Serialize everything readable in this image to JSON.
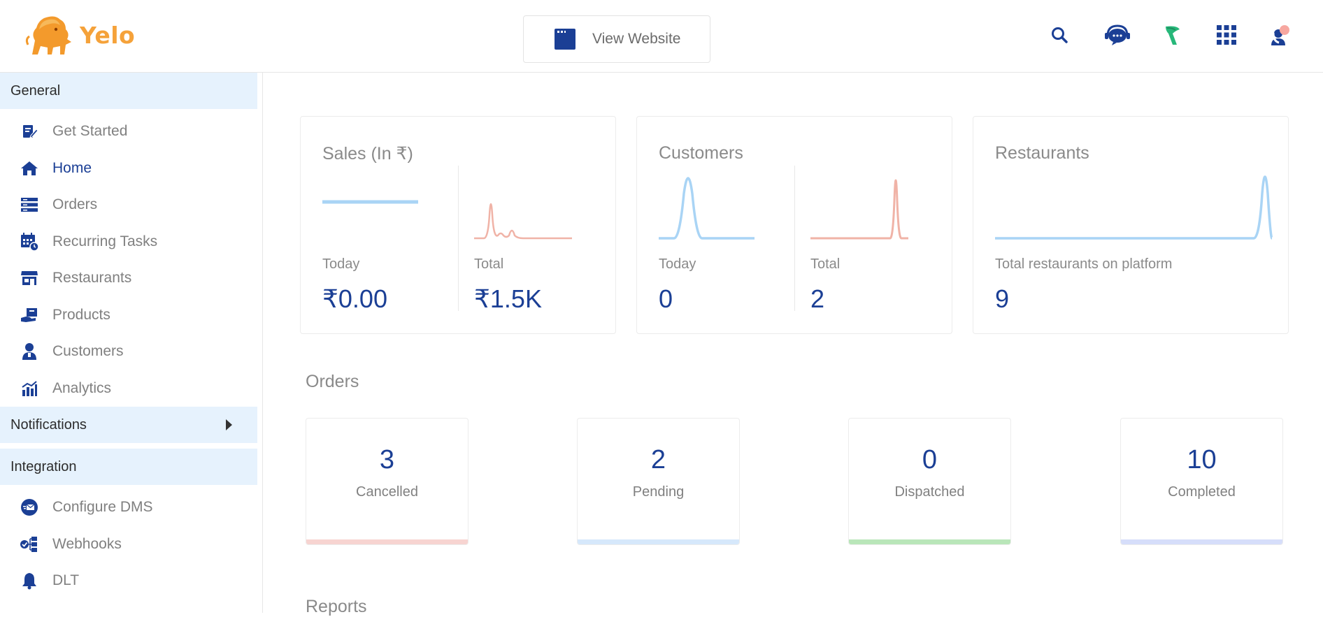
{
  "header": {
    "logo_text": "Yelo",
    "view_website_label": "View Website",
    "icons": [
      "search-icon",
      "support-chat-icon",
      "brand-leaf-icon",
      "apps-grid-icon",
      "profile-avatar-icon"
    ]
  },
  "sidebar": {
    "general_label": "General",
    "items": [
      {
        "label": "Get Started",
        "icon": "edit-note-icon"
      },
      {
        "label": "Home",
        "icon": "home-icon"
      },
      {
        "label": "Orders",
        "icon": "orders-icon"
      },
      {
        "label": "Recurring Tasks",
        "icon": "calendar-clock-icon"
      },
      {
        "label": "Restaurants",
        "icon": "store-icon"
      },
      {
        "label": "Products",
        "icon": "product-box-icon"
      },
      {
        "label": "Customers",
        "icon": "customer-icon"
      },
      {
        "label": "Analytics",
        "icon": "analytics-icon"
      }
    ],
    "notifications_label": "Notifications",
    "integration_label": "Integration",
    "integration_items": [
      {
        "label": "Configure DMS",
        "icon": "dms-icon"
      },
      {
        "label": "Webhooks",
        "icon": "webhooks-icon"
      },
      {
        "label": "DLT",
        "icon": "bell-icon"
      }
    ]
  },
  "stats": {
    "sales": {
      "title": "Sales (In ₹)",
      "today_label": "Today",
      "today_value": "₹0.00",
      "total_label": "Total",
      "total_value": "₹1.5K"
    },
    "customers": {
      "title": "Customers",
      "today_label": "Today",
      "today_value": "0",
      "total_label": "Total",
      "total_value": "2"
    },
    "restaurants": {
      "title": "Restaurants",
      "label": "Total restaurants on platform",
      "value": "9"
    }
  },
  "orders": {
    "title": "Orders",
    "cards": [
      {
        "count": "3",
        "label": "Cancelled",
        "color": "#f7d4d1"
      },
      {
        "count": "2",
        "label": "Pending",
        "color": "#d6e8fb"
      },
      {
        "count": "0",
        "label": "Dispatched",
        "color": "#b9e6b9"
      },
      {
        "count": "10",
        "label": "Completed",
        "color": "#d6defa"
      }
    ]
  },
  "reports_title": "Reports",
  "colors": {
    "primary": "#1b3f95",
    "sidebar_section_bg": "#e6f2fd",
    "spark_blue": "#a9d4f5",
    "spark_red": "#f0b3a7",
    "logo": "#f5a23a"
  }
}
